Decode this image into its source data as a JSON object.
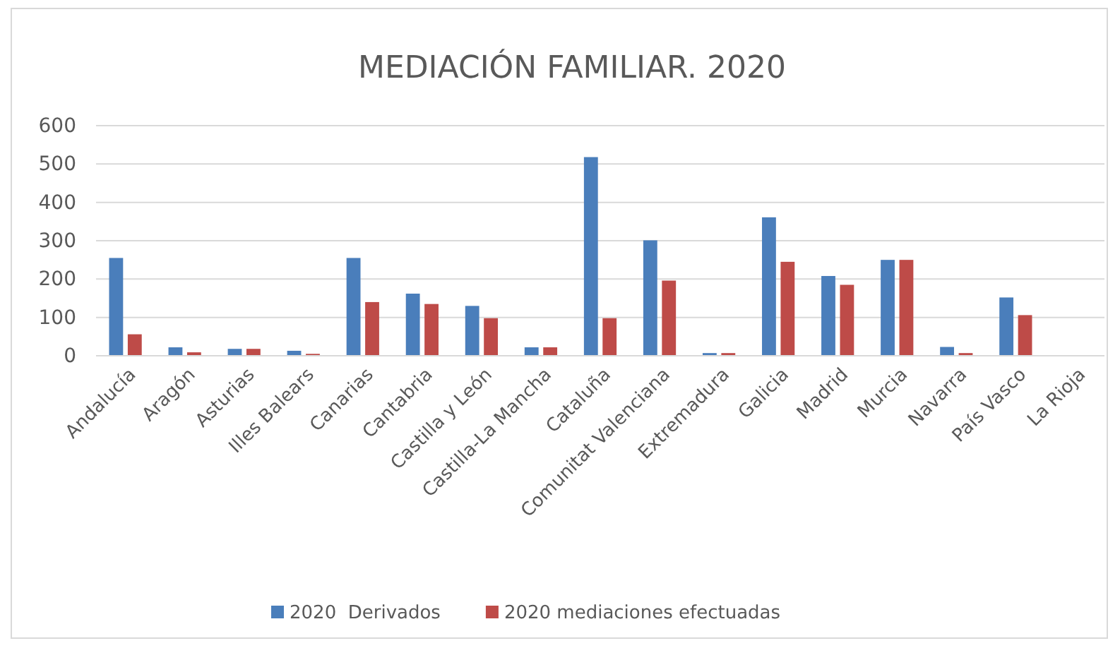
{
  "chart_data": {
    "type": "bar",
    "title": "MEDIACIÓN FAMILIAR. 2020",
    "categories": [
      "Andalucía",
      "Aragón",
      "Asturias",
      "Illes Balears",
      "Canarias",
      "Cantabria",
      "Castilla y León",
      "Castilla-La Mancha",
      "Cataluña",
      "Comunitat Valenciana",
      "Extremadura",
      "Galicia",
      "Madrid",
      "Murcia",
      "Navarra",
      "País Vasco",
      "La Rioja"
    ],
    "series": [
      {
        "name": "2020  Derivados",
        "color": "#4a7ebb",
        "values": [
          255,
          22,
          18,
          13,
          255,
          162,
          130,
          22,
          518,
          301,
          7,
          361,
          208,
          250,
          23,
          152,
          0
        ]
      },
      {
        "name": "2020 mediaciones efectuadas",
        "color": "#be4b48",
        "values": [
          56,
          9,
          18,
          5,
          140,
          135,
          98,
          22,
          98,
          196,
          7,
          245,
          185,
          250,
          7,
          106,
          0
        ]
      }
    ],
    "ylim": [
      0,
      600
    ],
    "yticks": [
      0,
      100,
      200,
      300,
      400,
      500,
      600
    ],
    "grid": "y",
    "legend": "bottom"
  }
}
